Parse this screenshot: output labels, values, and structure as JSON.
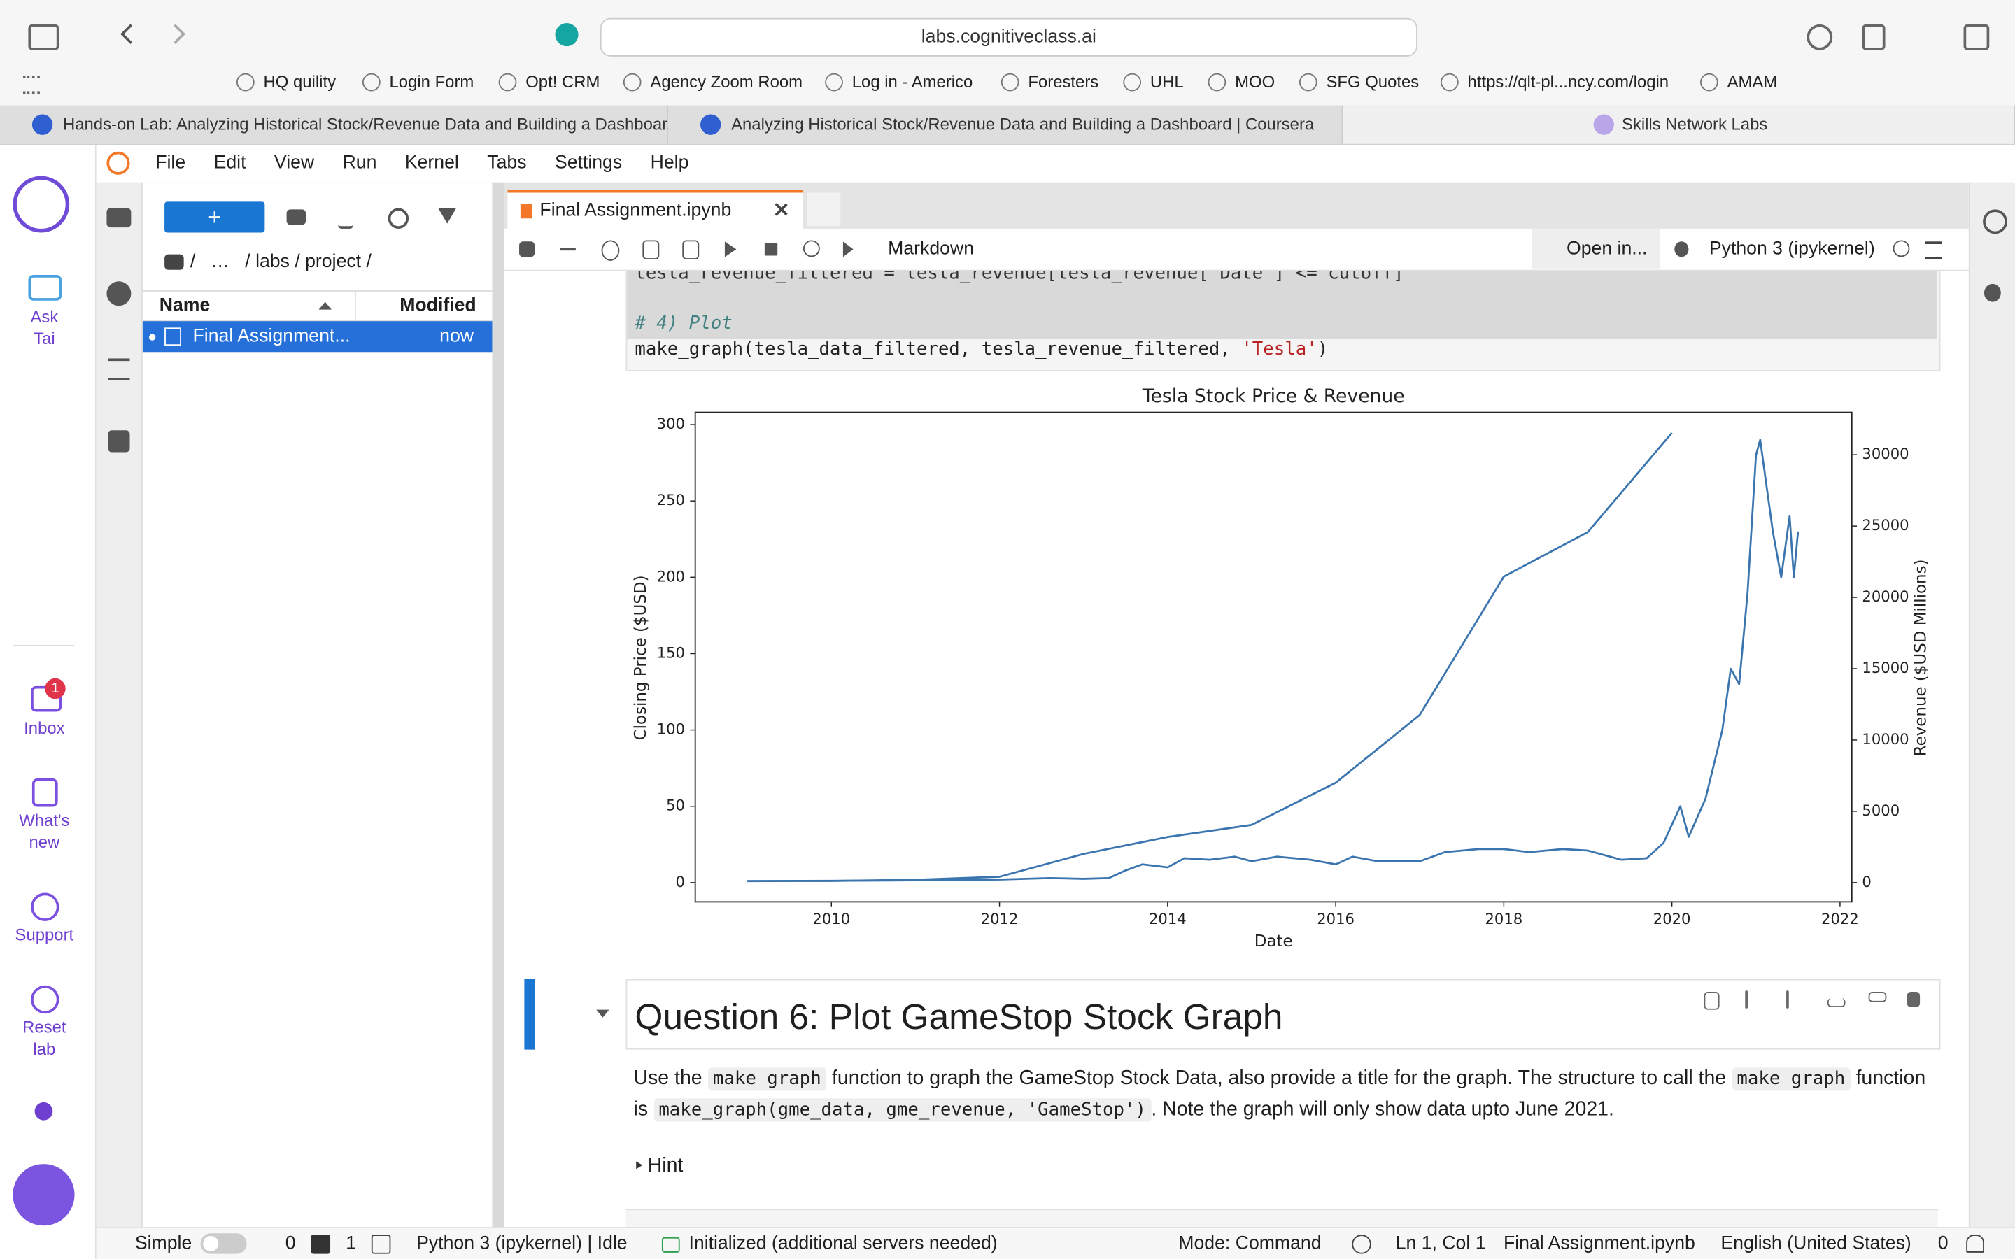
{
  "browser": {
    "url": "labs.cognitiveclass.ai",
    "bookmarks": [
      "HQ quility",
      "Login Form",
      "Opt! CRM",
      "Agency Zoom Room",
      "Log in - Americo",
      "Foresters",
      "UHL",
      "MOO",
      "SFG Quotes",
      "https://qlt-pl...ncy.com/login",
      "AMAM"
    ],
    "tabs": [
      "Hands-on Lab: Analyzing Historical Stock/Revenue Data and Building a Dashboar...",
      "Analyzing Historical Stock/Revenue Data and Building a Dashboard | Coursera",
      "Skills Network Labs"
    ]
  },
  "sidebar": {
    "ask": "Ask Tai",
    "inbox_badge": "1",
    "inbox": "Inbox",
    "whats_new": "What's new",
    "support": "Support",
    "reset": "Reset lab"
  },
  "menu": [
    "File",
    "Edit",
    "View",
    "Run",
    "Kernel",
    "Tabs",
    "Settings",
    "Help"
  ],
  "file_browser": {
    "new_button": "+",
    "path": "/   …   / labs / project /",
    "headers": [
      "Name",
      "Modified"
    ],
    "files": [
      {
        "name": "Final Assignment...",
        "modified": "now"
      }
    ]
  },
  "notebook": {
    "tab": "Final Assignment.ipynb",
    "cell_type": "Markdown",
    "open_in": "Open in...",
    "kernel": "Python 3 (ipykernel)",
    "code": {
      "line1": "tesla_revenue_filtered = tesla_revenue[tesla_revenue['Date'] <= cutoff]",
      "comment": "# 4) Plot",
      "call": [
        "make_graph(tesla_data_filtered, tesla_revenue_filtered, ",
        "'Tesla'",
        ")"
      ]
    },
    "heading": "Question 6: Plot GameStop Stock Graph",
    "paragraph": [
      "Use the ",
      "make_graph",
      " function to graph the GameStop Stock Data, also provide a title for the graph. The structure to call the ",
      "make_graph",
      " function is ",
      "make_graph(gme_data, gme_revenue, 'GameStop')",
      ". Note the graph will only show data upto June 2021."
    ],
    "hint": "Hint"
  },
  "status": {
    "mode_toggle": "Simple",
    "terminals": "0",
    "kernels": "1",
    "kernel_state": "Python 3 (ipykernel) | Idle",
    "lsp": "Initialized (additional servers needed)",
    "mode": "Mode: Command",
    "cursor": "Ln 1, Col 1",
    "file": "Final Assignment.ipynb",
    "language": "English (United States)",
    "notifications": "0"
  },
  "chart_data": {
    "type": "line",
    "title": "Tesla Stock Price & Revenue",
    "xlabel": "Date",
    "ylabel": "Closing Price ($USD)",
    "y2label": "Revenue ($USD Millions)",
    "xlim": [
      2008.38,
      2022.14
    ],
    "xticks": [
      2010,
      2012,
      2014,
      2016,
      2018,
      2020,
      2022
    ],
    "ylim": [
      -12.6,
      308
    ],
    "yticks": [
      0,
      50,
      100,
      150,
      200,
      250,
      300
    ],
    "y2lim": [
      -1350,
      32970
    ],
    "y2ticks": [
      0,
      5000,
      10000,
      15000,
      20000,
      25000,
      30000
    ],
    "grid": false,
    "series": [
      {
        "color": "#3b75af",
        "x": [
          2009.0,
          2010.0,
          2011.0,
          2012.0,
          2012.6,
          2013.0,
          2013.3,
          2013.5,
          2013.7,
          2014.0,
          2014.2,
          2014.5,
          2014.8,
          2015.0,
          2015.3,
          2015.7,
          2016.0,
          2016.2,
          2016.5,
          2017.0,
          2017.3,
          2017.7,
          2018.0,
          2018.3,
          2018.7,
          2019.0,
          2019.4,
          2019.7,
          2019.9,
          2020.1,
          2020.2,
          2020.4,
          2020.6,
          2020.7,
          2020.8,
          2020.9,
          2021.0,
          2021.05,
          2021.2,
          2021.3,
          2021.4,
          2021.45,
          2021.5
        ],
        "values": [
          1,
          1.2,
          1.5,
          2,
          3,
          2.5,
          3,
          8,
          12,
          10,
          16,
          15,
          17,
          14,
          17,
          15,
          12,
          17,
          14,
          14,
          20,
          22,
          22,
          20,
          22,
          21,
          15,
          16,
          26,
          50,
          30,
          55,
          100,
          140,
          130,
          190,
          280,
          290,
          230,
          200,
          240,
          200,
          230
        ]
      },
      {
        "color": "#3b75af",
        "axis": "y2",
        "x": [
          2009,
          2010,
          2011,
          2012,
          2013,
          2014,
          2015,
          2016,
          2017,
          2018,
          2019,
          2020
        ],
        "values": [
          112,
          117,
          204,
          413,
          2013,
          3198,
          4046,
          7000,
          11759,
          21461,
          24578,
          31536
        ]
      }
    ]
  }
}
